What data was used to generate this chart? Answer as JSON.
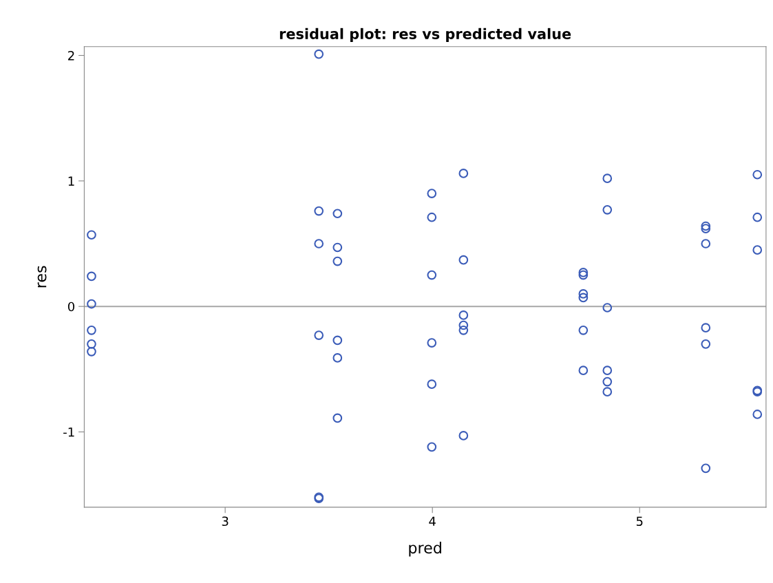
{
  "chart_data": {
    "type": "scatter",
    "title": "residual plot: res vs predicted value",
    "xlabel": "pred",
    "ylabel": "res",
    "xlim": [
      2.32,
      5.61
    ],
    "ylim": [
      -1.6,
      2.07
    ],
    "xticks": [
      3,
      4,
      5
    ],
    "yticks": [
      -1,
      0,
      1,
      2
    ],
    "grid": false,
    "marker": "circle",
    "ref_lines": [
      {
        "axis": "y",
        "value": 0,
        "color": "#a6a6a6"
      }
    ],
    "series": [
      {
        "color": "#3b5cb8",
        "x": [
          2.355,
          2.355,
          2.355,
          2.355,
          2.355,
          2.355,
          3.452,
          3.452,
          3.452,
          3.452,
          3.452,
          3.452,
          3.542,
          3.542,
          3.542,
          3.542,
          3.542,
          3.542,
          3.997,
          3.997,
          3.997,
          3.997,
          3.997,
          3.997,
          4.15,
          4.15,
          4.15,
          4.15,
          4.15,
          4.15,
          4.728,
          4.728,
          4.728,
          4.728,
          4.728,
          4.728,
          4.844,
          4.844,
          4.844,
          4.844,
          4.844,
          4.844,
          5.319,
          5.319,
          5.319,
          5.319,
          5.319,
          5.319,
          5.568,
          5.568,
          5.568,
          5.568,
          5.568,
          5.568
        ],
        "values": [
          0.57,
          0.24,
          0.02,
          -0.19,
          -0.3,
          -0.36,
          2.01,
          0.76,
          0.5,
          -0.23,
          -1.52,
          -1.53,
          0.74,
          0.47,
          0.36,
          -0.27,
          -0.41,
          -0.89,
          0.9,
          0.71,
          0.25,
          -0.29,
          -0.62,
          -1.12,
          1.06,
          0.37,
          -0.07,
          -0.15,
          -0.19,
          -1.03,
          0.27,
          0.25,
          0.1,
          0.07,
          -0.19,
          -0.51,
          1.02,
          0.77,
          -0.01,
          -0.51,
          -0.6,
          -0.68,
          0.64,
          0.62,
          0.5,
          -0.17,
          -0.3,
          -1.29,
          1.05,
          0.71,
          0.45,
          -0.67,
          -0.68,
          -0.86
        ]
      }
    ]
  }
}
